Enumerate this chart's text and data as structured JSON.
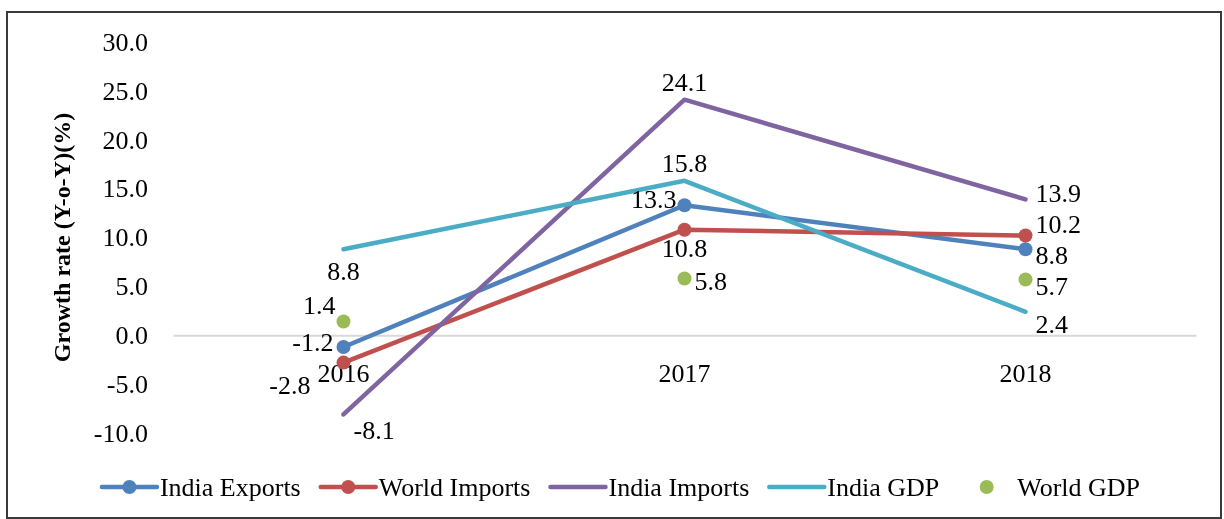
{
  "chart_data": {
    "type": "line",
    "ylabel": "Growth rate (Y-o-Y)(%)",
    "categories": [
      "2016",
      "2017",
      "2018"
    ],
    "series": [
      {
        "name": "India Exports",
        "color": "#4f81bd",
        "marker": "circle",
        "values": [
          -1.2,
          13.3,
          8.8
        ]
      },
      {
        "name": "World Imports",
        "color": "#c0504d",
        "marker": "circle",
        "values": [
          -2.8,
          10.8,
          10.2
        ]
      },
      {
        "name": "India Imports",
        "color": "#8064a2",
        "marker": "none",
        "values": [
          -8.1,
          24.1,
          13.9
        ]
      },
      {
        "name": "India GDP",
        "color": "#4bacc6",
        "marker": "none",
        "values": [
          8.8,
          15.8,
          2.4
        ]
      },
      {
        "name": "World GDP",
        "type": "scatter",
        "color": "#9bbb59",
        "marker": "circle",
        "values": [
          1.4,
          5.8,
          5.7
        ]
      }
    ],
    "ylim": [
      -10,
      30
    ],
    "yticks": [
      {
        "value": -10,
        "label": "-10.0"
      },
      {
        "value": -5,
        "label": "-5.0"
      },
      {
        "value": 0,
        "label": "0.0"
      },
      {
        "value": 5,
        "label": "5.0"
      },
      {
        "value": 10,
        "label": "10.0"
      },
      {
        "value": 15,
        "label": "15.0"
      },
      {
        "value": 20,
        "label": "20.0"
      },
      {
        "value": 25,
        "label": "25.0"
      },
      {
        "value": 30,
        "label": "30.0"
      }
    ],
    "data_labels": true,
    "legend": "bottom"
  }
}
